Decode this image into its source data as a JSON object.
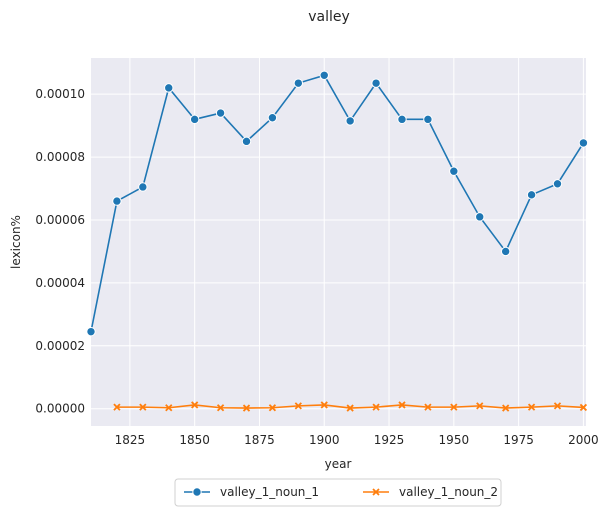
{
  "chart_data": {
    "type": "line",
    "title": "valley",
    "xlabel": "year",
    "ylabel": "lexicon%",
    "xlim": [
      1810,
      2001
    ],
    "ylim": [
      -5.5e-06,
      0.0001115
    ],
    "x_ticks": [
      1825,
      1850,
      1875,
      1900,
      1925,
      1950,
      1975,
      2000
    ],
    "x_tick_labels": [
      "1825",
      "1850",
      "1875",
      "1900",
      "1925",
      "1950",
      "1975",
      "2000"
    ],
    "y_ticks": [
      0,
      2e-05,
      4e-05,
      6e-05,
      8e-05,
      0.0001
    ],
    "y_tick_labels": [
      "0.00000",
      "0.00002",
      "0.00004",
      "0.00006",
      "0.00008",
      "0.00010"
    ],
    "grid": true,
    "legend_position": "bottom-center",
    "series": [
      {
        "name": "valley_1_noun_1",
        "color": "#1f77b4",
        "marker": "circle",
        "x": [
          1810,
          1820,
          1830,
          1840,
          1850,
          1860,
          1870,
          1880,
          1890,
          1900,
          1910,
          1920,
          1930,
          1940,
          1950,
          1960,
          1970,
          1980,
          1990,
          2000
        ],
        "values": [
          2.45e-05,
          6.6e-05,
          7.05e-05,
          0.000102,
          9.2e-05,
          9.4e-05,
          8.5e-05,
          9.25e-05,
          0.0001035,
          0.000106,
          9.15e-05,
          0.0001035,
          9.2e-05,
          9.2e-05,
          7.55e-05,
          6.1e-05,
          5e-05,
          6.8e-05,
          7.15e-05,
          8.45e-05
        ]
      },
      {
        "name": "valley_1_noun_2",
        "color": "#ff7f0e",
        "marker": "x",
        "x": [
          1820,
          1830,
          1840,
          1850,
          1860,
          1870,
          1880,
          1890,
          1900,
          1910,
          1920,
          1930,
          1940,
          1950,
          1960,
          1970,
          1980,
          1990,
          2000
        ],
        "values": [
          5e-07,
          5e-07,
          3e-07,
          1.2e-06,
          3e-07,
          2e-07,
          3e-07,
          9e-07,
          1.2e-06,
          2e-07,
          5e-07,
          1.2e-06,
          5e-07,
          5e-07,
          9e-07,
          2e-07,
          5e-07,
          9e-07,
          4e-07
        ]
      }
    ]
  }
}
